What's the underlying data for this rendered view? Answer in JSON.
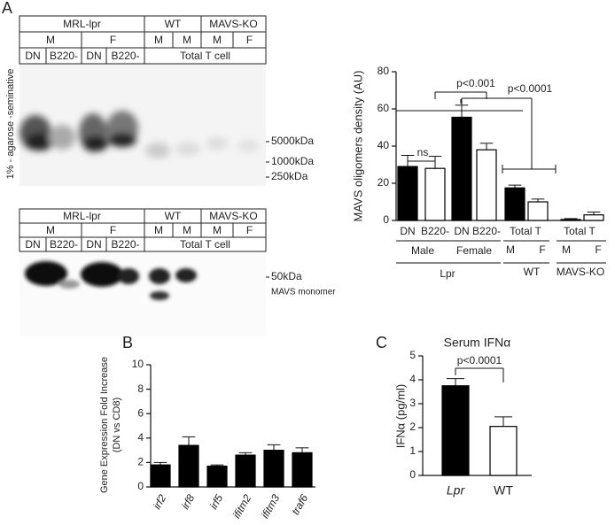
{
  "panel_labels": [
    "A",
    "B",
    "C"
  ],
  "blots": [
    {
      "rows": [
        [
          "MRL-lpr",
          "WT",
          "MAVS-KO"
        ],
        [
          "M",
          "F",
          "M",
          "M",
          "M",
          "F"
        ],
        [
          "DN",
          "B220-",
          "DN",
          "B220-",
          "Total T cell"
        ]
      ],
      "markers": [
        "5000kDa",
        "1000kDa",
        "250kDa"
      ],
      "side_label": "1% - agarose -seminative"
    },
    {
      "rows": [
        [
          "MRL-lpr",
          "WT",
          "MAVS-KO"
        ],
        [
          "M",
          "F",
          "M",
          "M",
          "M",
          "F"
        ],
        [
          "DN",
          "B220-",
          "DN",
          "B220-",
          "Total T cell"
        ]
      ],
      "markers": [
        "50kDa",
        "MAVS monomer"
      ]
    }
  ],
  "chart_data": [
    {
      "type": "bar",
      "y_label": "MAVS oligomers density  (AU)",
      "categories": [
        "DN",
        "B220-",
        "DN",
        "B220-",
        "M",
        "F",
        "M",
        "F"
      ],
      "values": [
        29,
        28,
        55.5,
        38,
        17.5,
        10,
        0.5,
        3
      ],
      "errors": [
        6,
        6.5,
        6.5,
        3.5,
        1.5,
        1.5,
        0.5,
        1.5
      ],
      "colors": [
        "#000000",
        "#ffffff",
        "#000000",
        "#ffffff",
        "#000000",
        "#ffffff",
        "#ffffff",
        "#ffffff"
      ],
      "ylim": [
        0,
        80
      ],
      "yticks": [
        0,
        20,
        40,
        60,
        80
      ],
      "group_labels": [
        "Total T",
        "Total T",
        "Male",
        "Female",
        "Lpr",
        "WT",
        "MAVS-KO"
      ],
      "annotations": [
        "ns",
        "p<0.001",
        "p<0.0001"
      ]
    },
    {
      "type": "bar",
      "y_label": [
        "Gene Expression Fold Increase",
        "(DN vs CD8)"
      ],
      "categories": [
        "irf2",
        "irf8",
        "irf5",
        "ifitm2",
        "ifitm3",
        "traf6"
      ],
      "values": [
        1.8,
        3.4,
        1.7,
        2.6,
        3.0,
        2.8
      ],
      "errors": [
        0.2,
        0.7,
        0.1,
        0.2,
        0.45,
        0.4
      ],
      "colors": [
        "#000000",
        "#000000",
        "#000000",
        "#000000",
        "#000000",
        "#000000"
      ],
      "ylim": [
        0,
        10
      ],
      "yticks": [
        0,
        2,
        4,
        6,
        8,
        10
      ]
    },
    {
      "type": "bar",
      "title": "Serum IFNα",
      "y_label": "IFNα (pg/ml)",
      "categories": [
        "Lpr",
        "WT"
      ],
      "values": [
        3.75,
        2.05
      ],
      "errors": [
        0.3,
        0.4
      ],
      "colors": [
        "#000000",
        "#ffffff"
      ],
      "ylim": [
        0,
        5
      ],
      "yticks": [
        0,
        1,
        2,
        3,
        4,
        5
      ],
      "annotations": [
        "p<0.0001"
      ]
    }
  ]
}
